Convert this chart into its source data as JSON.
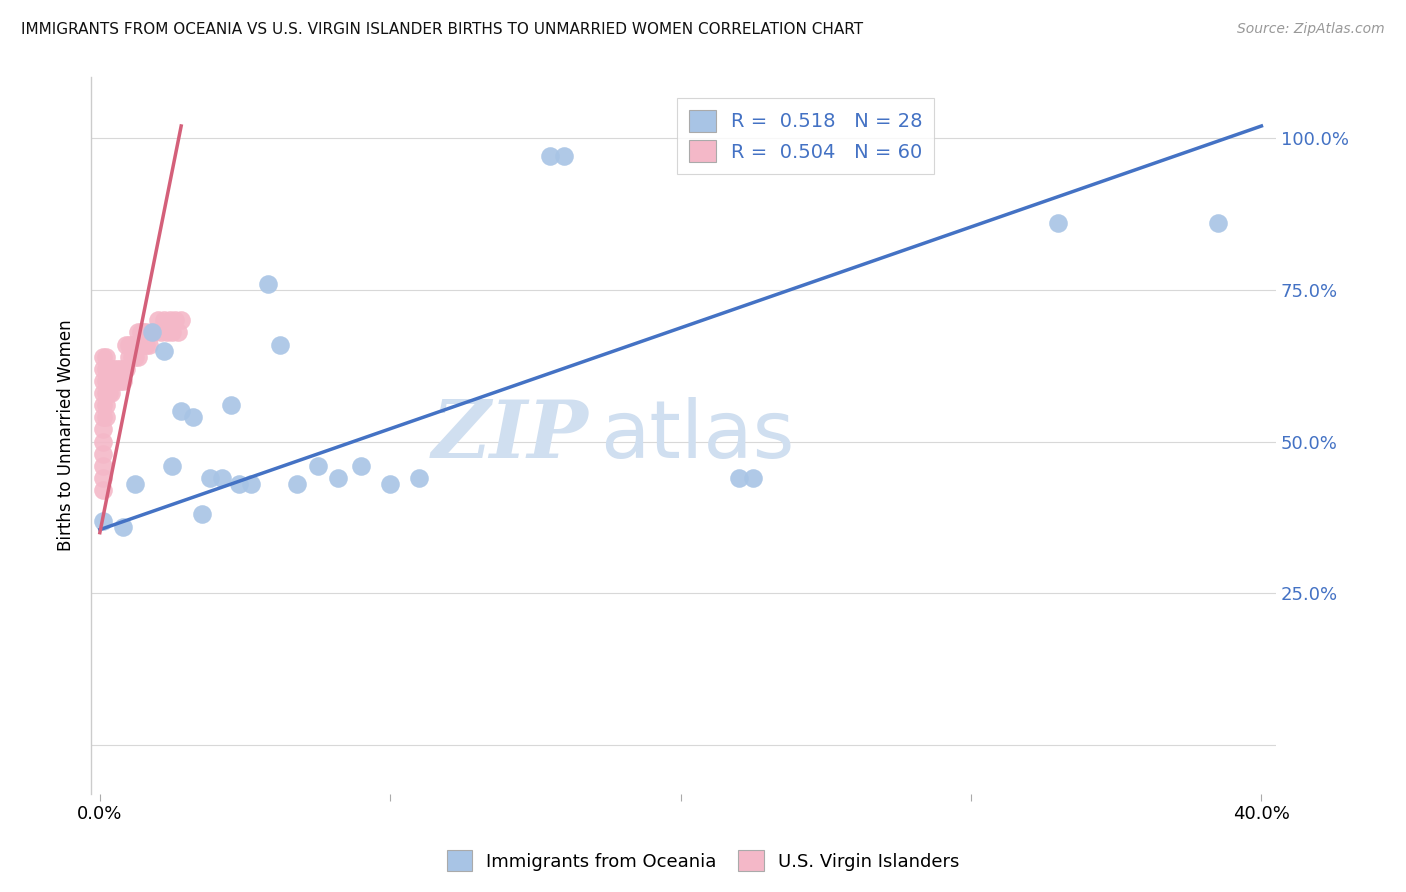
{
  "title": "IMMIGRANTS FROM OCEANIA VS U.S. VIRGIN ISLANDER BIRTHS TO UNMARRIED WOMEN CORRELATION CHART",
  "source": "Source: ZipAtlas.com",
  "ylabel": "Births to Unmarried Women",
  "blue_R": "0.518",
  "blue_N": "28",
  "pink_R": "0.504",
  "pink_N": "60",
  "legend_labels": [
    "Immigrants from Oceania",
    "U.S. Virgin Islanders"
  ],
  "blue_color": "#a8c4e5",
  "pink_color": "#f4b8c8",
  "blue_line_color": "#4472c4",
  "pink_line_color": "#d4607a",
  "watermark_zip": "ZIP",
  "watermark_atlas": "atlas",
  "blue_x": [
    0.001,
    0.008,
    0.012,
    0.018,
    0.022,
    0.025,
    0.028,
    0.032,
    0.035,
    0.038,
    0.042,
    0.045,
    0.048,
    0.052,
    0.058,
    0.062,
    0.068,
    0.075,
    0.082,
    0.09,
    0.1,
    0.11,
    0.155,
    0.16,
    0.22,
    0.225,
    0.33,
    0.385
  ],
  "blue_y": [
    0.37,
    0.36,
    0.43,
    0.68,
    0.65,
    0.46,
    0.55,
    0.54,
    0.38,
    0.44,
    0.44,
    0.56,
    0.43,
    0.43,
    0.76,
    0.66,
    0.43,
    0.46,
    0.44,
    0.46,
    0.43,
    0.44,
    0.97,
    0.97,
    0.44,
    0.44,
    0.86,
    0.86
  ],
  "pink_x": [
    0.001,
    0.001,
    0.001,
    0.001,
    0.001,
    0.001,
    0.001,
    0.001,
    0.001,
    0.001,
    0.001,
    0.001,
    0.002,
    0.002,
    0.002,
    0.002,
    0.002,
    0.002,
    0.003,
    0.003,
    0.003,
    0.004,
    0.004,
    0.004,
    0.005,
    0.005,
    0.006,
    0.006,
    0.007,
    0.007,
    0.008,
    0.008,
    0.009,
    0.009,
    0.01,
    0.01,
    0.011,
    0.011,
    0.012,
    0.012,
    0.013,
    0.013,
    0.014,
    0.014,
    0.015,
    0.015,
    0.016,
    0.016,
    0.017,
    0.018,
    0.019,
    0.02,
    0.021,
    0.022,
    0.023,
    0.024,
    0.025,
    0.026,
    0.027,
    0.028
  ],
  "pink_y": [
    0.42,
    0.44,
    0.46,
    0.48,
    0.5,
    0.52,
    0.54,
    0.56,
    0.58,
    0.6,
    0.62,
    0.64,
    0.58,
    0.6,
    0.62,
    0.64,
    0.56,
    0.54,
    0.58,
    0.6,
    0.62,
    0.6,
    0.62,
    0.58,
    0.6,
    0.62,
    0.6,
    0.62,
    0.6,
    0.62,
    0.6,
    0.62,
    0.66,
    0.62,
    0.64,
    0.66,
    0.64,
    0.66,
    0.64,
    0.66,
    0.68,
    0.64,
    0.66,
    0.68,
    0.66,
    0.68,
    0.66,
    0.68,
    0.66,
    0.68,
    0.68,
    0.7,
    0.68,
    0.7,
    0.68,
    0.7,
    0.68,
    0.7,
    0.68,
    0.7
  ],
  "xmin": 0.0,
  "xmax": 0.4,
  "ymin": 0.0,
  "ymax": 1.0,
  "x_tick_positions": [
    0.0,
    0.1,
    0.2,
    0.3,
    0.4
  ],
  "x_tick_labels": [
    "0.0%",
    "",
    "",
    "",
    "40.0%"
  ],
  "y_tick_positions": [
    0.0,
    0.25,
    0.5,
    0.75,
    1.0
  ],
  "y_tick_labels_right": [
    "",
    "25.0%",
    "50.0%",
    "75.0%",
    "100.0%"
  ]
}
